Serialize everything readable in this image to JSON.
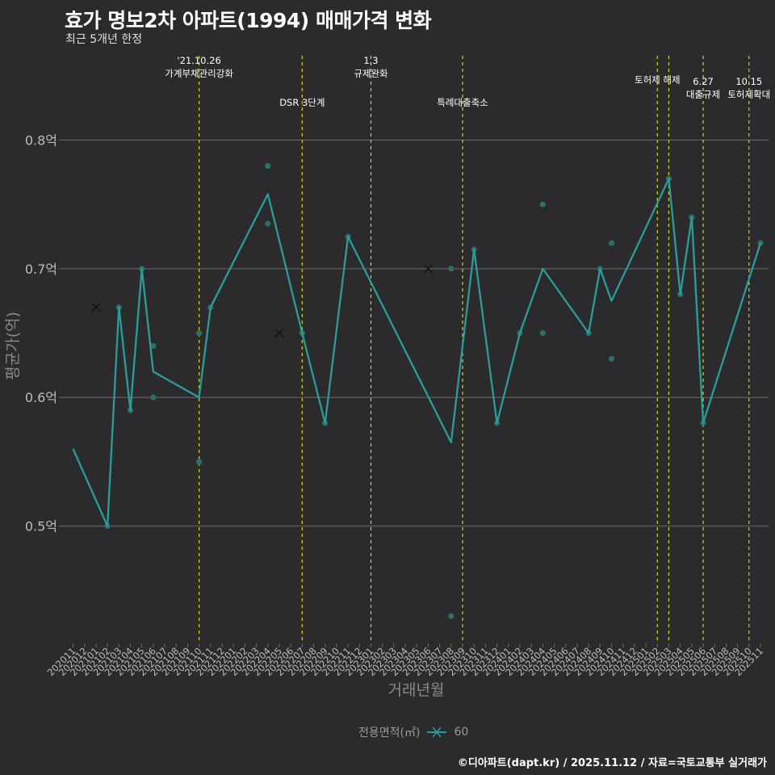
{
  "title": "효가 명보2차 아파트(1994) 매매가격 변화",
  "subtitle": "최근 5개년 한정",
  "caption": "©디아파트(dapt.kr) / 2025.11.12 / 자료=국토교통부 실거래가",
  "legend": {
    "title": "전용면적(㎡)",
    "item": "60"
  },
  "colors": {
    "line": "#2a9d9a",
    "point": "#2f6e6b",
    "vline": "#d4d620",
    "grid": "#6a6a6a",
    "text": "#ffffff",
    "axis_text": "#bdbdbd"
  },
  "chart_data": {
    "type": "line",
    "title": "효가 명보2차 아파트(1994) 매매가격 변화",
    "xlabel": "거래년월",
    "ylabel": "평균가(억)",
    "ylim": [
      0.41,
      0.87
    ],
    "y_ticks": [
      0.5,
      0.6,
      0.7,
      0.8
    ],
    "y_tick_labels": [
      "0.5억",
      "0.6억",
      "0.7억",
      "0.8억"
    ],
    "x_categories": [
      "202011",
      "202012",
      "202101",
      "202102",
      "202103",
      "202104",
      "202105",
      "202106",
      "202107",
      "202108",
      "202109",
      "202110",
      "202111",
      "202112",
      "202201",
      "202202",
      "202203",
      "202204",
      "202205",
      "202206",
      "202207",
      "202208",
      "202209",
      "202210",
      "202211",
      "202212",
      "202301",
      "202302",
      "202303",
      "202304",
      "202305",
      "202306",
      "202307",
      "202308",
      "202309",
      "202310",
      "202311",
      "202312",
      "202401",
      "202402",
      "202403",
      "202404",
      "202405",
      "202406",
      "202407",
      "202408",
      "202409",
      "202410",
      "202411",
      "202412",
      "202501",
      "202502",
      "202503",
      "202504",
      "202505",
      "202506",
      "202507",
      "202508",
      "202509",
      "202510",
      "202511"
    ],
    "series": [
      {
        "name": "60",
        "line": [
          [
            "202011",
            0.56
          ],
          [
            "202102",
            0.5
          ],
          [
            "202103",
            0.67
          ],
          [
            "202104",
            0.59
          ],
          [
            "202105",
            0.7
          ],
          [
            "202106",
            0.62
          ],
          [
            "202110",
            0.6
          ],
          [
            "202111",
            0.67
          ],
          [
            "202204",
            0.758
          ],
          [
            "202207",
            0.65
          ],
          [
            "202209",
            0.58
          ],
          [
            "202211",
            0.725
          ],
          [
            "202308",
            0.565
          ],
          [
            "202310",
            0.715
          ],
          [
            "202312",
            0.58
          ],
          [
            "202402",
            0.65
          ],
          [
            "202404",
            0.7
          ],
          [
            "202408",
            0.65
          ],
          [
            "202409",
            0.7
          ],
          [
            "202410",
            0.675
          ],
          [
            "202503",
            0.77
          ],
          [
            "202504",
            0.68
          ],
          [
            "202505",
            0.74
          ],
          [
            "202506",
            0.58
          ],
          [
            "202511",
            0.72
          ]
        ],
        "points": [
          [
            "202102",
            0.5
          ],
          [
            "202103",
            0.67
          ],
          [
            "202104",
            0.59
          ],
          [
            "202105",
            0.7
          ],
          [
            "202106",
            0.64
          ],
          [
            "202106",
            0.6
          ],
          [
            "202110",
            0.65
          ],
          [
            "202110",
            0.55
          ],
          [
            "202111",
            0.67
          ],
          [
            "202204",
            0.78
          ],
          [
            "202204",
            0.735
          ],
          [
            "202207",
            0.65
          ],
          [
            "202209",
            0.58
          ],
          [
            "202211",
            0.725
          ],
          [
            "202308",
            0.7
          ],
          [
            "202308",
            0.43
          ],
          [
            "202310",
            0.715
          ],
          [
            "202312",
            0.58
          ],
          [
            "202402",
            0.65
          ],
          [
            "202404",
            0.75
          ],
          [
            "202404",
            0.65
          ],
          [
            "202408",
            0.65
          ],
          [
            "202409",
            0.7
          ],
          [
            "202410",
            0.72
          ],
          [
            "202410",
            0.63
          ],
          [
            "202503",
            0.77
          ],
          [
            "202504",
            0.68
          ],
          [
            "202505",
            0.74
          ],
          [
            "202506",
            0.58
          ],
          [
            "202511",
            0.72
          ]
        ],
        "cross_points": [
          [
            "202101",
            0.67
          ],
          [
            "202205",
            0.65
          ],
          [
            "202306",
            0.7
          ]
        ]
      }
    ],
    "events": [
      {
        "x": "202110",
        "label": "'21.10.26\n가계부채관리강화",
        "tier": 1
      },
      {
        "x": "202207",
        "label": "DSR 3단계",
        "tier": 2
      },
      {
        "x": "202301",
        "label": "1.3\n규제완화",
        "tier": 1
      },
      {
        "x": "202309",
        "label": "특례대출축소",
        "tier": 2
      },
      {
        "x": "202502",
        "label": "토허제 해제",
        "tier": 0
      },
      {
        "x": "202503",
        "label": "",
        "tier": 0
      },
      {
        "x": "202506",
        "label": "6.27\n대출규제",
        "tier": 3
      },
      {
        "x": "202510",
        "label": "10.15\n토허제확대",
        "tier": 3
      }
    ]
  }
}
